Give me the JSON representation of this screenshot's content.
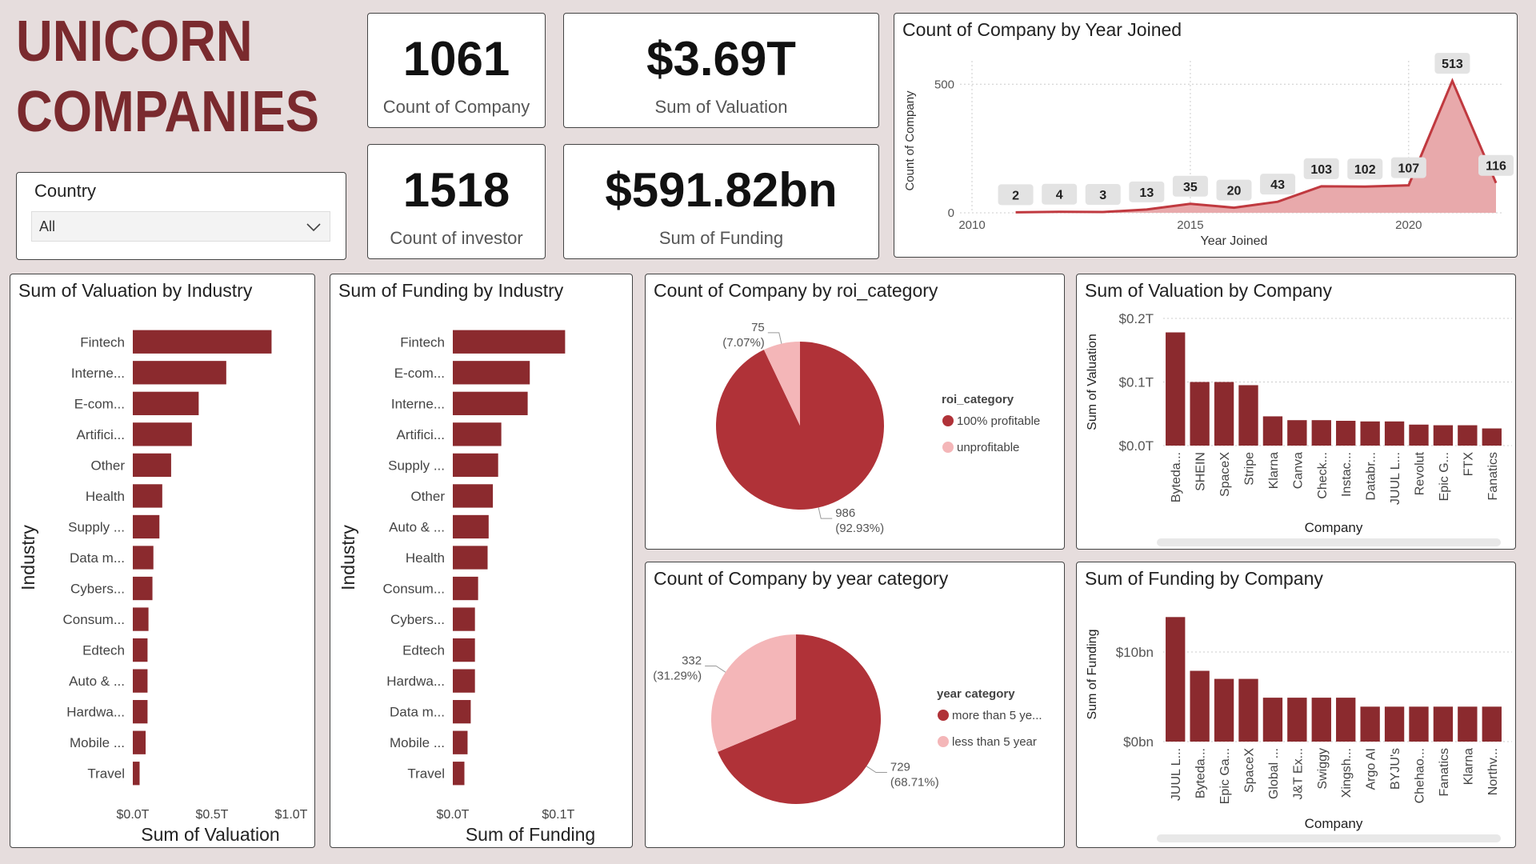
{
  "header": {
    "title": "UNICORN COMPANIES"
  },
  "slicer": {
    "label": "Country",
    "value": "All"
  },
  "kpis": [
    {
      "value": "1061",
      "label": "Count of Company"
    },
    {
      "value": "$3.69T",
      "label": "Sum of Valuation"
    },
    {
      "value": "1518",
      "label": "Count of investor"
    },
    {
      "value": "$591.82bn",
      "label": "Sum of Funding"
    }
  ],
  "chart_data": [
    {
      "type": "line",
      "title": "Count of Company by Year Joined",
      "x_label": "Year Joined",
      "y_label": "Count of Company",
      "x": [
        2011,
        2012,
        2013,
        2014,
        2015,
        2016,
        2017,
        2018,
        2019,
        2020,
        2021,
        2022
      ],
      "values": [
        2,
        4,
        3,
        13,
        35,
        20,
        43,
        103,
        102,
        107,
        513,
        116
      ],
      "color": "#c0393f",
      "fill": "#e8a9ab",
      "xlim": [
        2010,
        2022
      ],
      "xticks": [
        2010,
        2015,
        2020
      ],
      "ylim": [
        0,
        560
      ],
      "yticks": [
        0,
        500
      ],
      "grid": true
    },
    {
      "type": "hbar",
      "title": "Sum of Valuation by Industry",
      "x_label": "Sum of Valuation",
      "y_label": "Industry",
      "categories": [
        "Fintech",
        "Interne...",
        "E-com...",
        "Artifici...",
        "Other",
        "Health",
        "Supply ...",
        "Data m...",
        "Cybers...",
        "Consum...",
        "Edtech",
        "Auto & ...",
        "Hardwa...",
        "Mobile ...",
        "Travel"
      ],
      "values": [
        0.876,
        0.59,
        0.416,
        0.373,
        0.242,
        0.186,
        0.168,
        0.13,
        0.124,
        0.099,
        0.093,
        0.093,
        0.093,
        0.081,
        0.043
      ],
      "color": "#8b2a2e",
      "xlim": [
        0,
        1.0
      ],
      "xticks": [
        {
          "value": 0,
          "label": "$0.0T"
        },
        {
          "value": 0.5,
          "label": "$0.5T"
        },
        {
          "value": 1.0,
          "label": "$1.0T"
        }
      ]
    },
    {
      "type": "hbar",
      "title": "Sum of Funding by Industry",
      "x_label": "Sum of Funding",
      "y_label": "Industry",
      "categories": [
        "Fintech",
        "E-com...",
        "Interne...",
        "Artifici...",
        "Supply ...",
        "Other",
        "Auto & ...",
        "Health",
        "Consum...",
        "Cybers...",
        "Edtech",
        "Hardwa...",
        "Data m...",
        "Mobile ...",
        "Travel"
      ],
      "values": [
        0.1065,
        0.073,
        0.071,
        0.046,
        0.043,
        0.038,
        0.034,
        0.033,
        0.024,
        0.021,
        0.021,
        0.021,
        0.017,
        0.014,
        0.011
      ],
      "color": "#8b2a2e",
      "xlim": [
        0,
        0.11
      ],
      "xticks": [
        {
          "value": 0,
          "label": "$0.0T"
        },
        {
          "value": 0.1,
          "label": "$0.1T"
        }
      ]
    },
    {
      "type": "pie",
      "title": "Count of Company by roi_category",
      "legend_title": "roi_category",
      "categories": [
        "100% profitable",
        "unprofitable"
      ],
      "values": [
        986,
        75
      ],
      "value_labels": [
        "986",
        "75"
      ],
      "percent_labels": [
        "(92.93%)",
        "(7.07%)"
      ],
      "colors": [
        "#b03238",
        "#f4b6b8"
      ]
    },
    {
      "type": "pie",
      "title": "Count of Company by year category",
      "legend_title": "year category",
      "categories": [
        "more than 5 ye...",
        "less than 5 year"
      ],
      "values": [
        729,
        332
      ],
      "value_labels": [
        "729",
        "332"
      ],
      "percent_labels": [
        "(68.71%)",
        "(31.29%)"
      ],
      "colors": [
        "#b03238",
        "#f4b6b8"
      ]
    },
    {
      "type": "column",
      "title": "Sum of Valuation by Company",
      "x_label": "Company",
      "y_label": "Sum of Valuation",
      "categories": [
        "Byteda...",
        "SHEIN",
        "SpaceX",
        "Stripe",
        "Klarna",
        "Canva",
        "Check...",
        "Instac...",
        "Databr...",
        "JUUL L...",
        "Revolut",
        "Epic G...",
        "FTX",
        "Fanatics"
      ],
      "values": [
        0.178,
        0.1,
        0.1,
        0.095,
        0.046,
        0.04,
        0.04,
        0.039,
        0.038,
        0.038,
        0.033,
        0.032,
        0.032,
        0.027
      ],
      "color": "#8b2a2e",
      "ylim": [
        0,
        0.2
      ],
      "yticks": [
        {
          "value": 0,
          "label": "$0.0T"
        },
        {
          "value": 0.1,
          "label": "$0.1T"
        },
        {
          "value": 0.2,
          "label": "$0.2T"
        }
      ],
      "grid": true
    },
    {
      "type": "column",
      "title": "Sum of Funding by Company",
      "x_label": "Company",
      "y_label": "Sum of Funding",
      "categories": [
        "JUUL L...",
        "Byteda...",
        "Epic Ga...",
        "SpaceX",
        "Global ...",
        "J&T Ex...",
        "Swiggy",
        "Xingsh...",
        "Argo AI",
        "BYJU's",
        "Chehao...",
        "Fanatics",
        "Klarna",
        "Northv..."
      ],
      "values": [
        13.9,
        7.9,
        7.0,
        7.0,
        4.9,
        4.9,
        4.9,
        4.9,
        3.9,
        3.9,
        3.9,
        3.9,
        3.9,
        3.9
      ],
      "color": "#8b2a2e",
      "ylim": [
        0,
        15
      ],
      "yticks": [
        {
          "value": 0,
          "label": "$0bn"
        },
        {
          "value": 10,
          "label": "$10bn"
        }
      ],
      "grid": true
    }
  ]
}
